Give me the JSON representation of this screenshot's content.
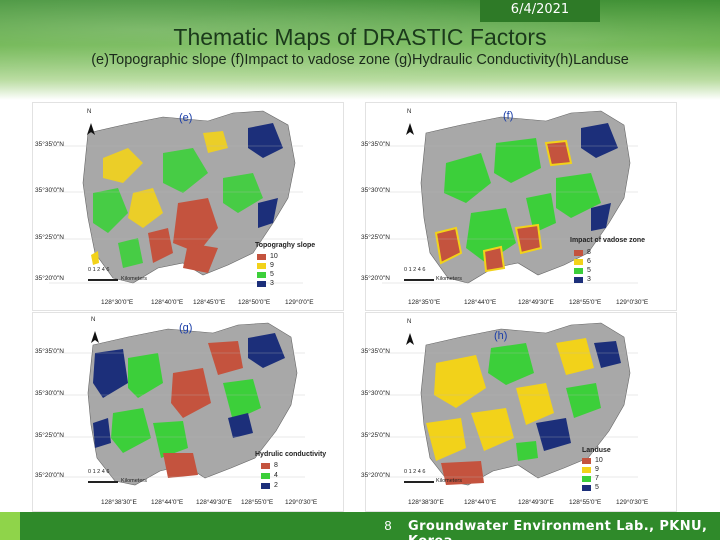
{
  "header": {
    "date": "6/4/2021",
    "title": "Thematic Maps of DRASTIC Factors",
    "subtitle": "(e)Topographic slope (f)Impact to vadose zone (g)Hydraulic Conductivity(h)Landuse"
  },
  "colors": {
    "red": "#c4533e",
    "yellow": "#f2d21a",
    "green": "#3ccf3a",
    "navy": "#1c2f7a",
    "gray": "#a8a8a8"
  },
  "panels": {
    "e": {
      "label": "(e)",
      "latitudes": [
        "35°35'0\"N",
        "35°30'0\"N",
        "35°25'0\"N",
        "35°20'0\"N"
      ],
      "longitudes": [
        "128°30'0\"E",
        "128°40'0\"E",
        "128°45'0\"E",
        "128°50'0\"E",
        "129°0'0\"E"
      ],
      "legend_title": "Topograghy slope",
      "legend_items": [
        {
          "value": "10",
          "color": "#c4533e"
        },
        {
          "value": "9",
          "color": "#f2d21a"
        },
        {
          "value": "5",
          "color": "#3ccf3a"
        },
        {
          "value": "3",
          "color": "#1c2f7a"
        }
      ],
      "scale_ticks": "0 1 2   4      6",
      "scale_unit": "Kilometers",
      "north": "N"
    },
    "f": {
      "label": "(f)",
      "latitudes": [
        "35°35'0\"N",
        "35°30'0\"N",
        "35°25'0\"N",
        "35°20'0\"N"
      ],
      "longitudes": [
        "128°35'0\"E",
        "128°44'0\"E",
        "128°49'30\"E",
        "128°55'0\"E",
        "129°0'30\"E"
      ],
      "legend_title": "Impact of vadose zone",
      "legend_items": [
        {
          "value": "8",
          "color": "#c4533e"
        },
        {
          "value": "6",
          "color": "#f2d21a"
        },
        {
          "value": "5",
          "color": "#3ccf3a"
        },
        {
          "value": "3",
          "color": "#1c2f7a"
        }
      ],
      "scale_ticks": "0 1 2   4      6",
      "scale_unit": "Kilometers",
      "north": "N"
    },
    "g": {
      "label": "(g)",
      "latitudes": [
        "35°35'0\"N",
        "35°30'0\"N",
        "35°25'0\"N",
        "35°20'0\"N"
      ],
      "longitudes": [
        "128°38'30\"E",
        "128°44'0\"E",
        "128°49'30\"E",
        "128°55'0\"E",
        "129°0'30\"E"
      ],
      "legend_title": "Hydrulic conductivity",
      "legend_items": [
        {
          "value": "8",
          "color": "#c4533e"
        },
        {
          "value": "4",
          "color": "#3ccf3a"
        },
        {
          "value": "2",
          "color": "#1c2f7a"
        }
      ],
      "scale_ticks": "0 1 2   4      6",
      "scale_unit": "Kilometers",
      "north": "N"
    },
    "h": {
      "label": "(h)",
      "latitudes": [
        "35°35'0\"N",
        "35°30'0\"N",
        "35°25'0\"N",
        "35°20'0\"N"
      ],
      "longitudes": [
        "128°38'30\"E",
        "128°44'0\"E",
        "128°49'30\"E",
        "128°55'0\"E",
        "129°0'30\"E"
      ],
      "legend_title": "Landuse",
      "legend_items": [
        {
          "value": "10",
          "color": "#c4533e"
        },
        {
          "value": "9",
          "color": "#f2d21a"
        },
        {
          "value": "7",
          "color": "#3ccf3a"
        },
        {
          "value": "5",
          "color": "#1c2f7a"
        }
      ],
      "scale_ticks": "0 1 2   4      6",
      "scale_unit": "Kilometers",
      "north": "N"
    }
  },
  "footer": {
    "page_number": "8",
    "lab": "Groundwater Environment Lab., PKNU, Korea"
  }
}
